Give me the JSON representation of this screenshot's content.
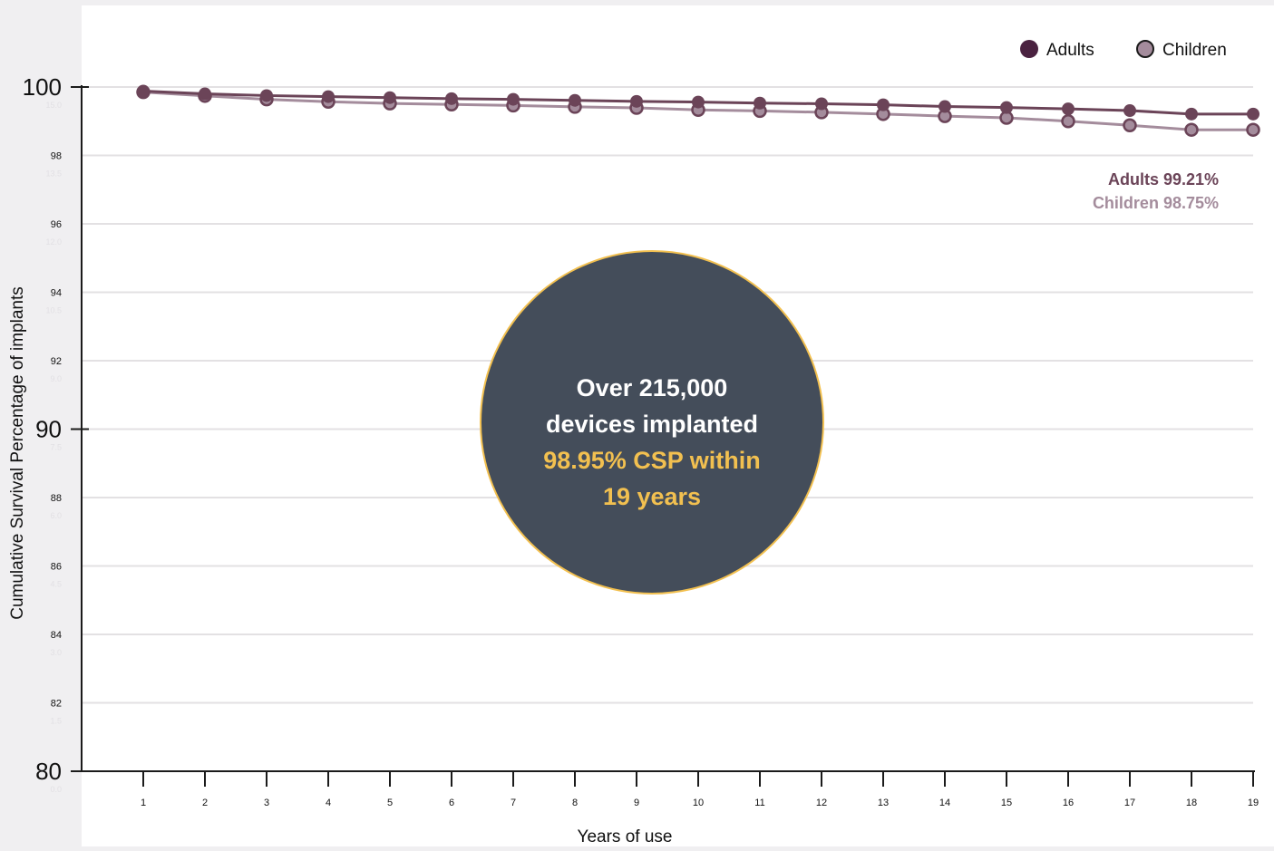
{
  "chart_data": {
    "type": "line",
    "xlabel": "Years of use",
    "ylabel": "Cumulative Survival Percentage of implants",
    "ylim": [
      80,
      100
    ],
    "xlim": [
      0,
      19
    ],
    "x": [
      1,
      2,
      3,
      4,
      5,
      6,
      7,
      8,
      9,
      10,
      11,
      12,
      13,
      14,
      15,
      16,
      17,
      18,
      19
    ],
    "x_tick_labels": [
      "1",
      "2",
      "3",
      "4",
      "5",
      "6",
      "7",
      "8",
      "9",
      "10",
      "11",
      "12",
      "13",
      "14",
      "15",
      "16",
      "17",
      "18",
      "19"
    ],
    "y_ticks_major": [
      {
        "value": 100,
        "label": "100"
      },
      {
        "value": 90,
        "label": "90"
      },
      {
        "value": 80,
        "label": "80"
      }
    ],
    "y_ticks_minor": [
      {
        "value": 98,
        "label": "98"
      },
      {
        "value": 96,
        "label": "96"
      },
      {
        "value": 94,
        "label": "94"
      },
      {
        "value": 92,
        "label": "92"
      },
      {
        "value": 88,
        "label": "88"
      },
      {
        "value": 86,
        "label": "86"
      },
      {
        "value": 84,
        "label": "84"
      },
      {
        "value": 82,
        "label": "82"
      }
    ],
    "y_ticks_secondary": [
      {
        "value": 99.5,
        "label": "15.0"
      },
      {
        "value": 97.5,
        "label": "13.5"
      },
      {
        "value": 95.5,
        "label": "12.0"
      },
      {
        "value": 93.5,
        "label": "10.5"
      },
      {
        "value": 91.5,
        "label": "9.0"
      },
      {
        "value": 89.5,
        "label": "7.5"
      },
      {
        "value": 87.5,
        "label": "6.0"
      },
      {
        "value": 85.5,
        "label": "4.5"
      },
      {
        "value": 83.5,
        "label": "3.0"
      },
      {
        "value": 81.5,
        "label": "1.5"
      },
      {
        "value": 79.5,
        "label": "0.0"
      }
    ],
    "grid": true,
    "legend_position": "top-right",
    "series": [
      {
        "name": "Adults",
        "color": "#6b4458",
        "values": [
          99.88,
          99.8,
          99.75,
          99.72,
          99.69,
          99.66,
          99.64,
          99.61,
          99.58,
          99.56,
          99.53,
          99.51,
          99.48,
          99.43,
          99.4,
          99.36,
          99.31,
          99.21,
          99.21
        ]
      },
      {
        "name": "Children",
        "color": "#a48c9c",
        "values": [
          99.85,
          99.74,
          99.64,
          99.57,
          99.52,
          99.49,
          99.46,
          99.42,
          99.39,
          99.33,
          99.3,
          99.26,
          99.21,
          99.15,
          99.1,
          99.0,
          98.88,
          98.75,
          98.75
        ]
      }
    ],
    "end_labels": [
      {
        "text": "Adults 99.21%",
        "color": "#6b4458"
      },
      {
        "text": "Children 98.75%",
        "color": "#a48c9c"
      }
    ],
    "callout": {
      "lines": [
        {
          "text": "Over 215,000",
          "color": "#ffffff"
        },
        {
          "text": "devices implanted",
          "color": "#ffffff"
        },
        {
          "text": "98.95% CSP within",
          "color": "#f2c050"
        },
        {
          "text": "19 years",
          "color": "#f2c050"
        }
      ],
      "fill": "#444d5a",
      "border": "#f2c050"
    }
  }
}
